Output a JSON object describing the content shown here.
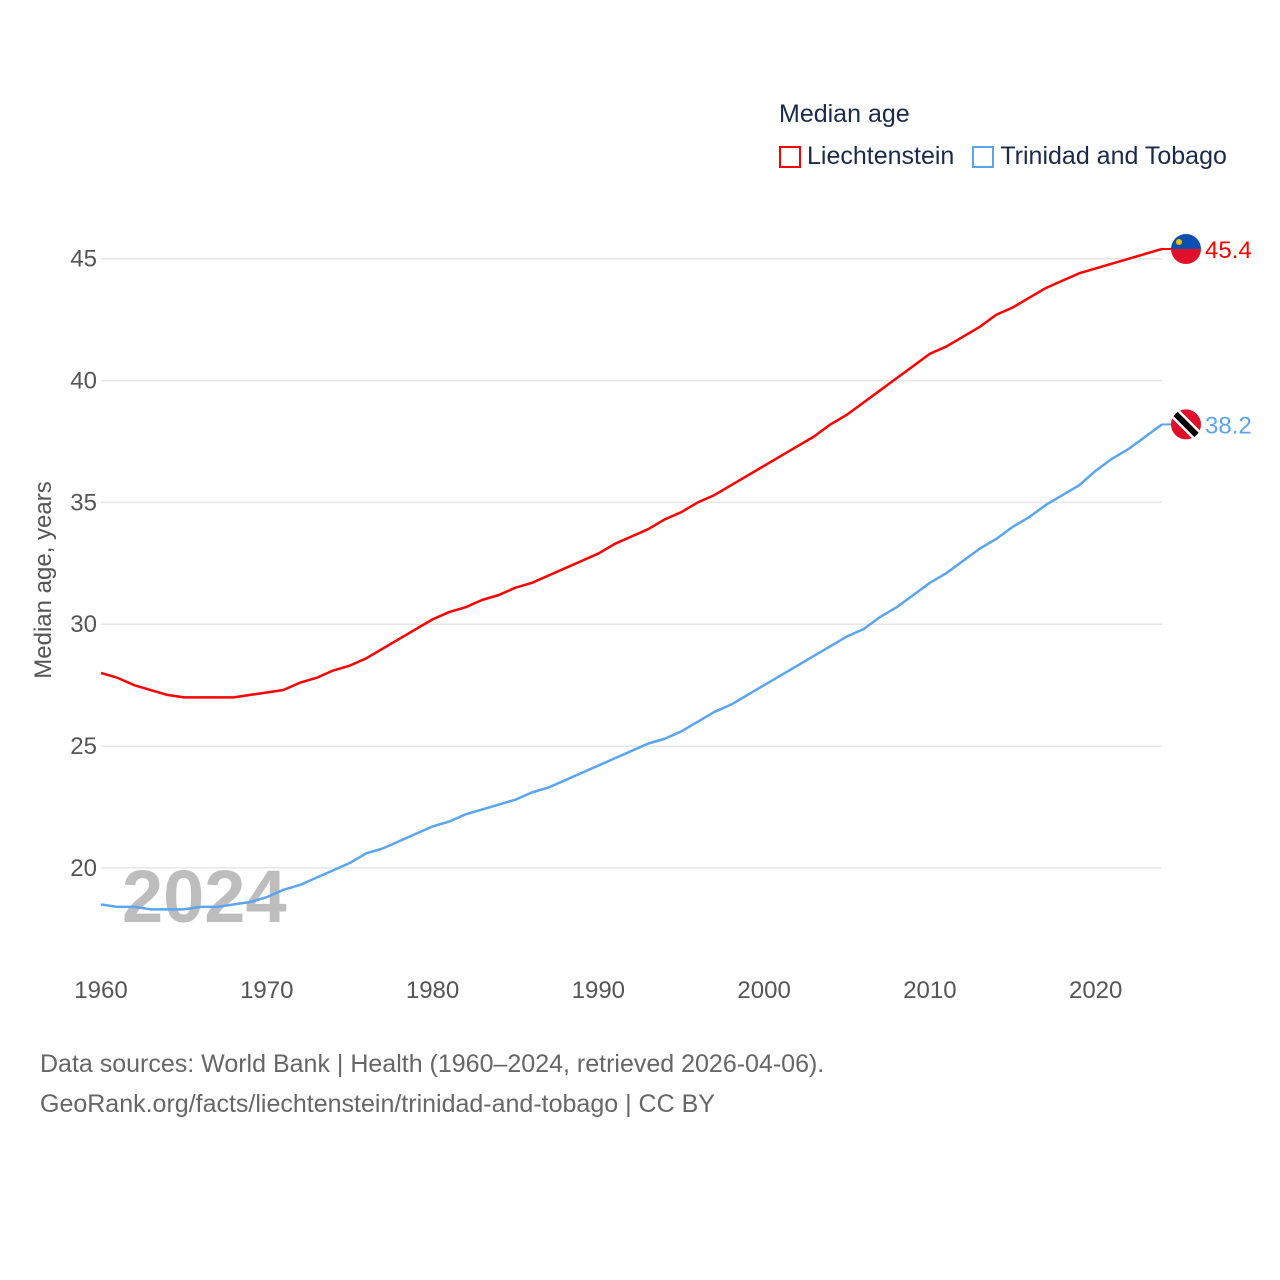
{
  "legend": {
    "title": "Median age",
    "items": [
      {
        "name": "Liechtenstein",
        "color": "#ff0000"
      },
      {
        "name": "Trinidad and Tobago",
        "color": "#5ba4ee"
      }
    ]
  },
  "footer": {
    "line1": "Data sources: World Bank | Health (1960–2024, retrieved 2026-04-06).",
    "line2": "GeoRank.org/facts/liechtenstein/trinidad-and-tobago | CC BY"
  },
  "chart_data": {
    "type": "line",
    "title": "Median age",
    "xlabel": "",
    "ylabel": "Median age, years",
    "year_label": "2024",
    "xlim": [
      1960,
      2024
    ],
    "ylim": [
      17,
      47
    ],
    "xticks": [
      1960,
      1970,
      1980,
      1990,
      2000,
      2010,
      2020
    ],
    "yticks": [
      20,
      25,
      30,
      35,
      40,
      45
    ],
    "grid": true,
    "legend_position": "top-right",
    "x_start": 1960,
    "series": [
      {
        "name": "Liechtenstein",
        "color": "#ff0000",
        "end_label": "45.4",
        "values": [
          28.0,
          27.8,
          27.5,
          27.3,
          27.1,
          27.0,
          27.0,
          27.0,
          27.0,
          27.1,
          27.2,
          27.3,
          27.6,
          27.8,
          28.1,
          28.3,
          28.6,
          29.0,
          29.4,
          29.8,
          30.2,
          30.5,
          30.7,
          31.0,
          31.2,
          31.5,
          31.7,
          32.0,
          32.3,
          32.6,
          32.9,
          33.3,
          33.6,
          33.9,
          34.3,
          34.6,
          35.0,
          35.3,
          35.7,
          36.1,
          36.5,
          36.9,
          37.3,
          37.7,
          38.2,
          38.6,
          39.1,
          39.6,
          40.1,
          40.6,
          41.1,
          41.4,
          41.8,
          42.2,
          42.7,
          43.0,
          43.4,
          43.8,
          44.1,
          44.4,
          44.6,
          44.8,
          45.0,
          45.2,
          45.4
        ]
      },
      {
        "name": "Trinidad and Tobago",
        "color": "#5ba4ee",
        "end_label": "38.2",
        "values": [
          18.5,
          18.4,
          18.4,
          18.3,
          18.3,
          18.3,
          18.4,
          18.4,
          18.5,
          18.6,
          18.8,
          19.1,
          19.3,
          19.6,
          19.9,
          20.2,
          20.6,
          20.8,
          21.1,
          21.4,
          21.7,
          21.9,
          22.2,
          22.4,
          22.6,
          22.8,
          23.1,
          23.3,
          23.6,
          23.9,
          24.2,
          24.5,
          24.8,
          25.1,
          25.3,
          25.6,
          26.0,
          26.4,
          26.7,
          27.1,
          27.5,
          27.9,
          28.3,
          28.7,
          29.1,
          29.5,
          29.8,
          30.3,
          30.7,
          31.2,
          31.7,
          32.1,
          32.6,
          33.1,
          33.5,
          34.0,
          34.4,
          34.9,
          35.3,
          35.7,
          36.3,
          36.8,
          37.2,
          37.7,
          38.2
        ]
      }
    ]
  }
}
